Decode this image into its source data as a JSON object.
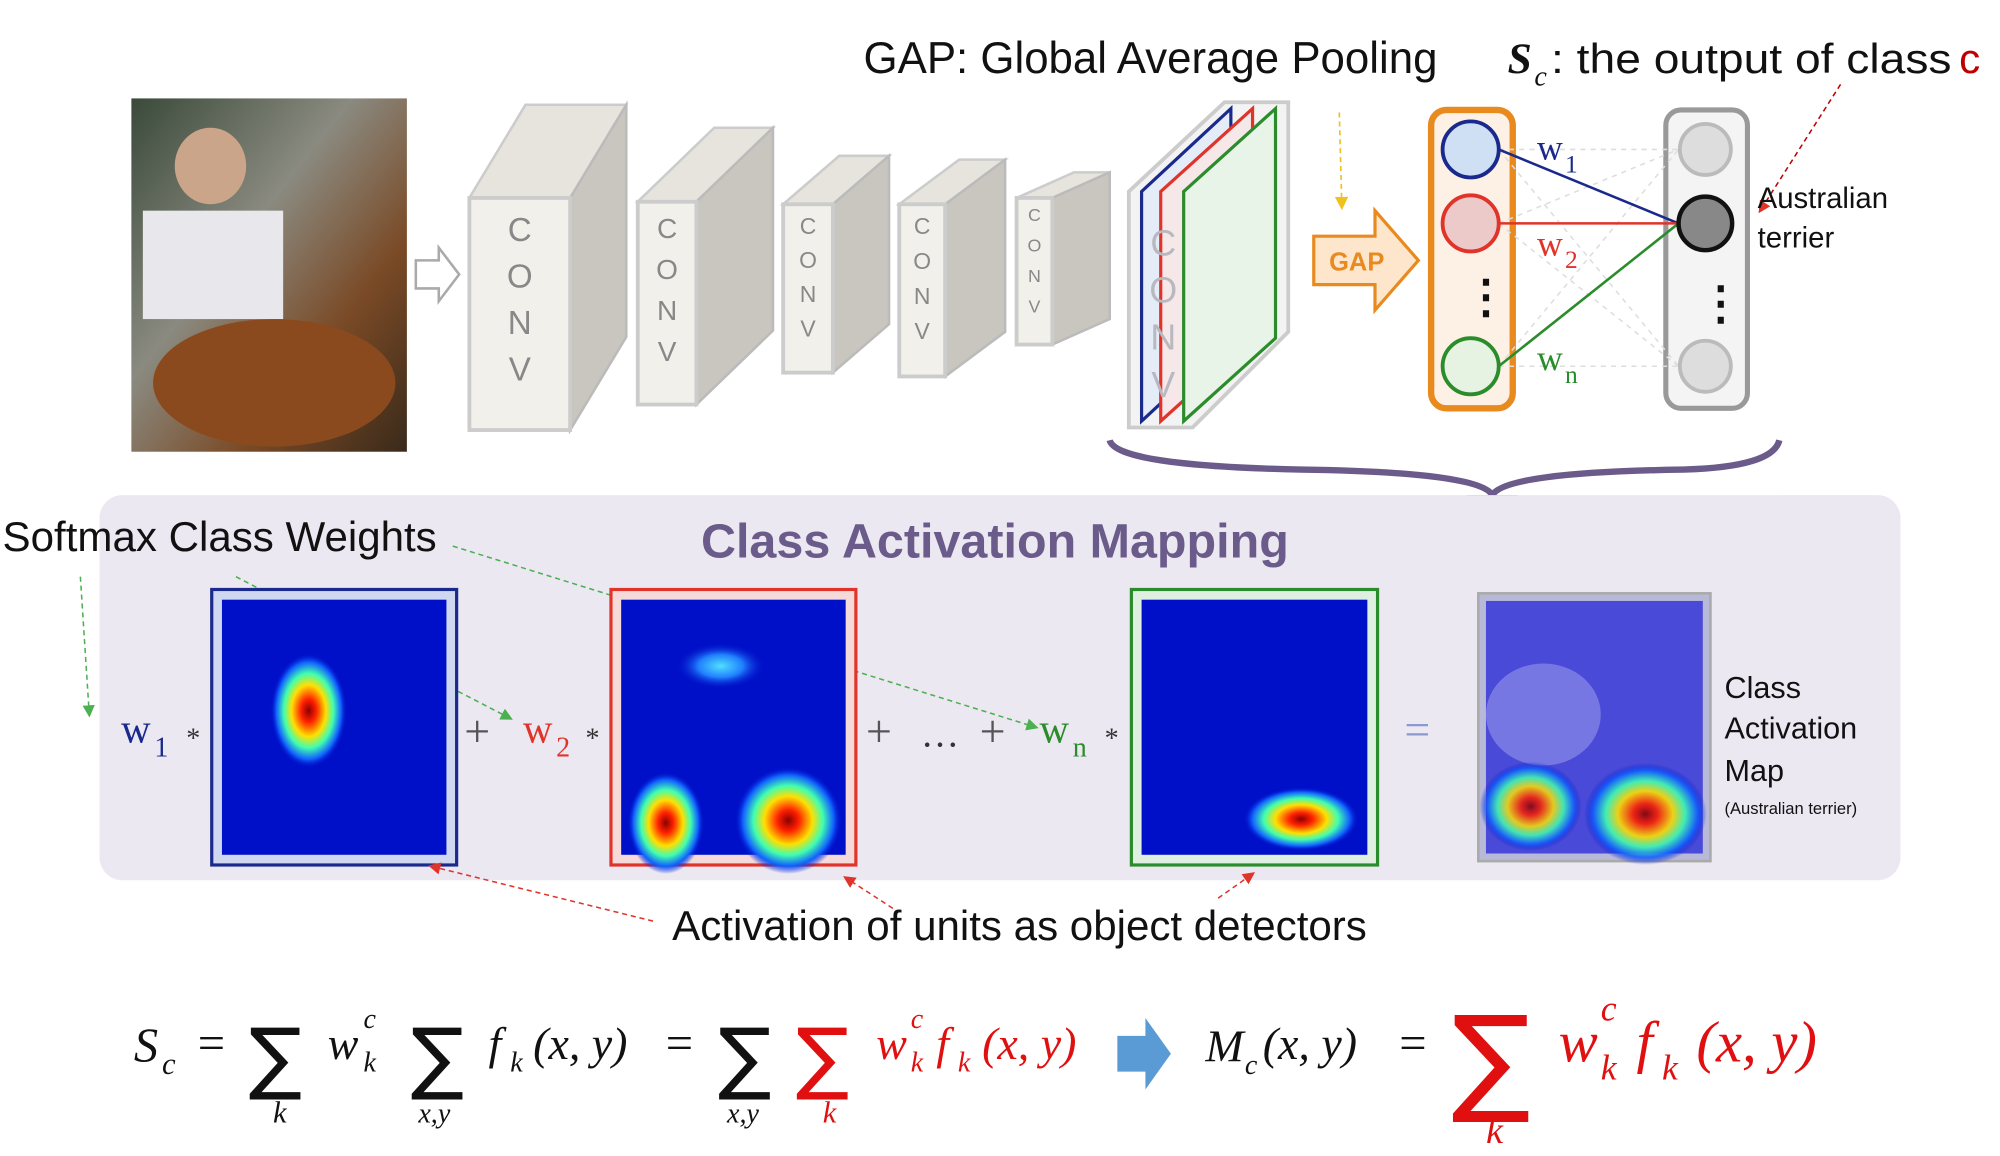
{
  "header": {
    "gap_title": "GAP: Global Average Pooling",
    "sc_symbol": "S",
    "sc_sub": "c",
    "sc_text": ": the output of class ",
    "sc_class": "c"
  },
  "network": {
    "conv_letters": [
      "C",
      "O",
      "N",
      "V"
    ],
    "gap_label": "GAP",
    "weights": [
      {
        "w": "w",
        "sub": "1",
        "color": "#1a2a8c"
      },
      {
        "w": "w",
        "sub": "2",
        "color": "#e0342a"
      },
      {
        "w": "w",
        "sub": "n",
        "color": "#2a8c2a"
      }
    ],
    "dots": "⋮",
    "class_label_1": "Australian",
    "class_label_2": "terrier"
  },
  "cam": {
    "title": "Class Activation Mapping",
    "softmax_label": "Softmax Class Weights",
    "star": "*",
    "plus": "+",
    "ellipsis": "…",
    "equals": "=",
    "map_label": [
      "Class",
      "Activation",
      "Map"
    ],
    "map_sub": "(Australian terrier)",
    "detectors_label": "Activation of units as object detectors"
  },
  "equation": {
    "S": "S",
    "c": "c",
    "eq": "=",
    "sum": "∑",
    "k": "k",
    "xy": "x,y",
    "w": "w",
    "f": "f",
    "args": "(x, y)",
    "M": "M"
  },
  "colors": {
    "blue": "#1a2a8c",
    "red": "#e0342a",
    "green": "#2a8c2a",
    "orange": "#e88a1e",
    "purple": "#6b5b8a",
    "panel": "#ebe8f2"
  }
}
